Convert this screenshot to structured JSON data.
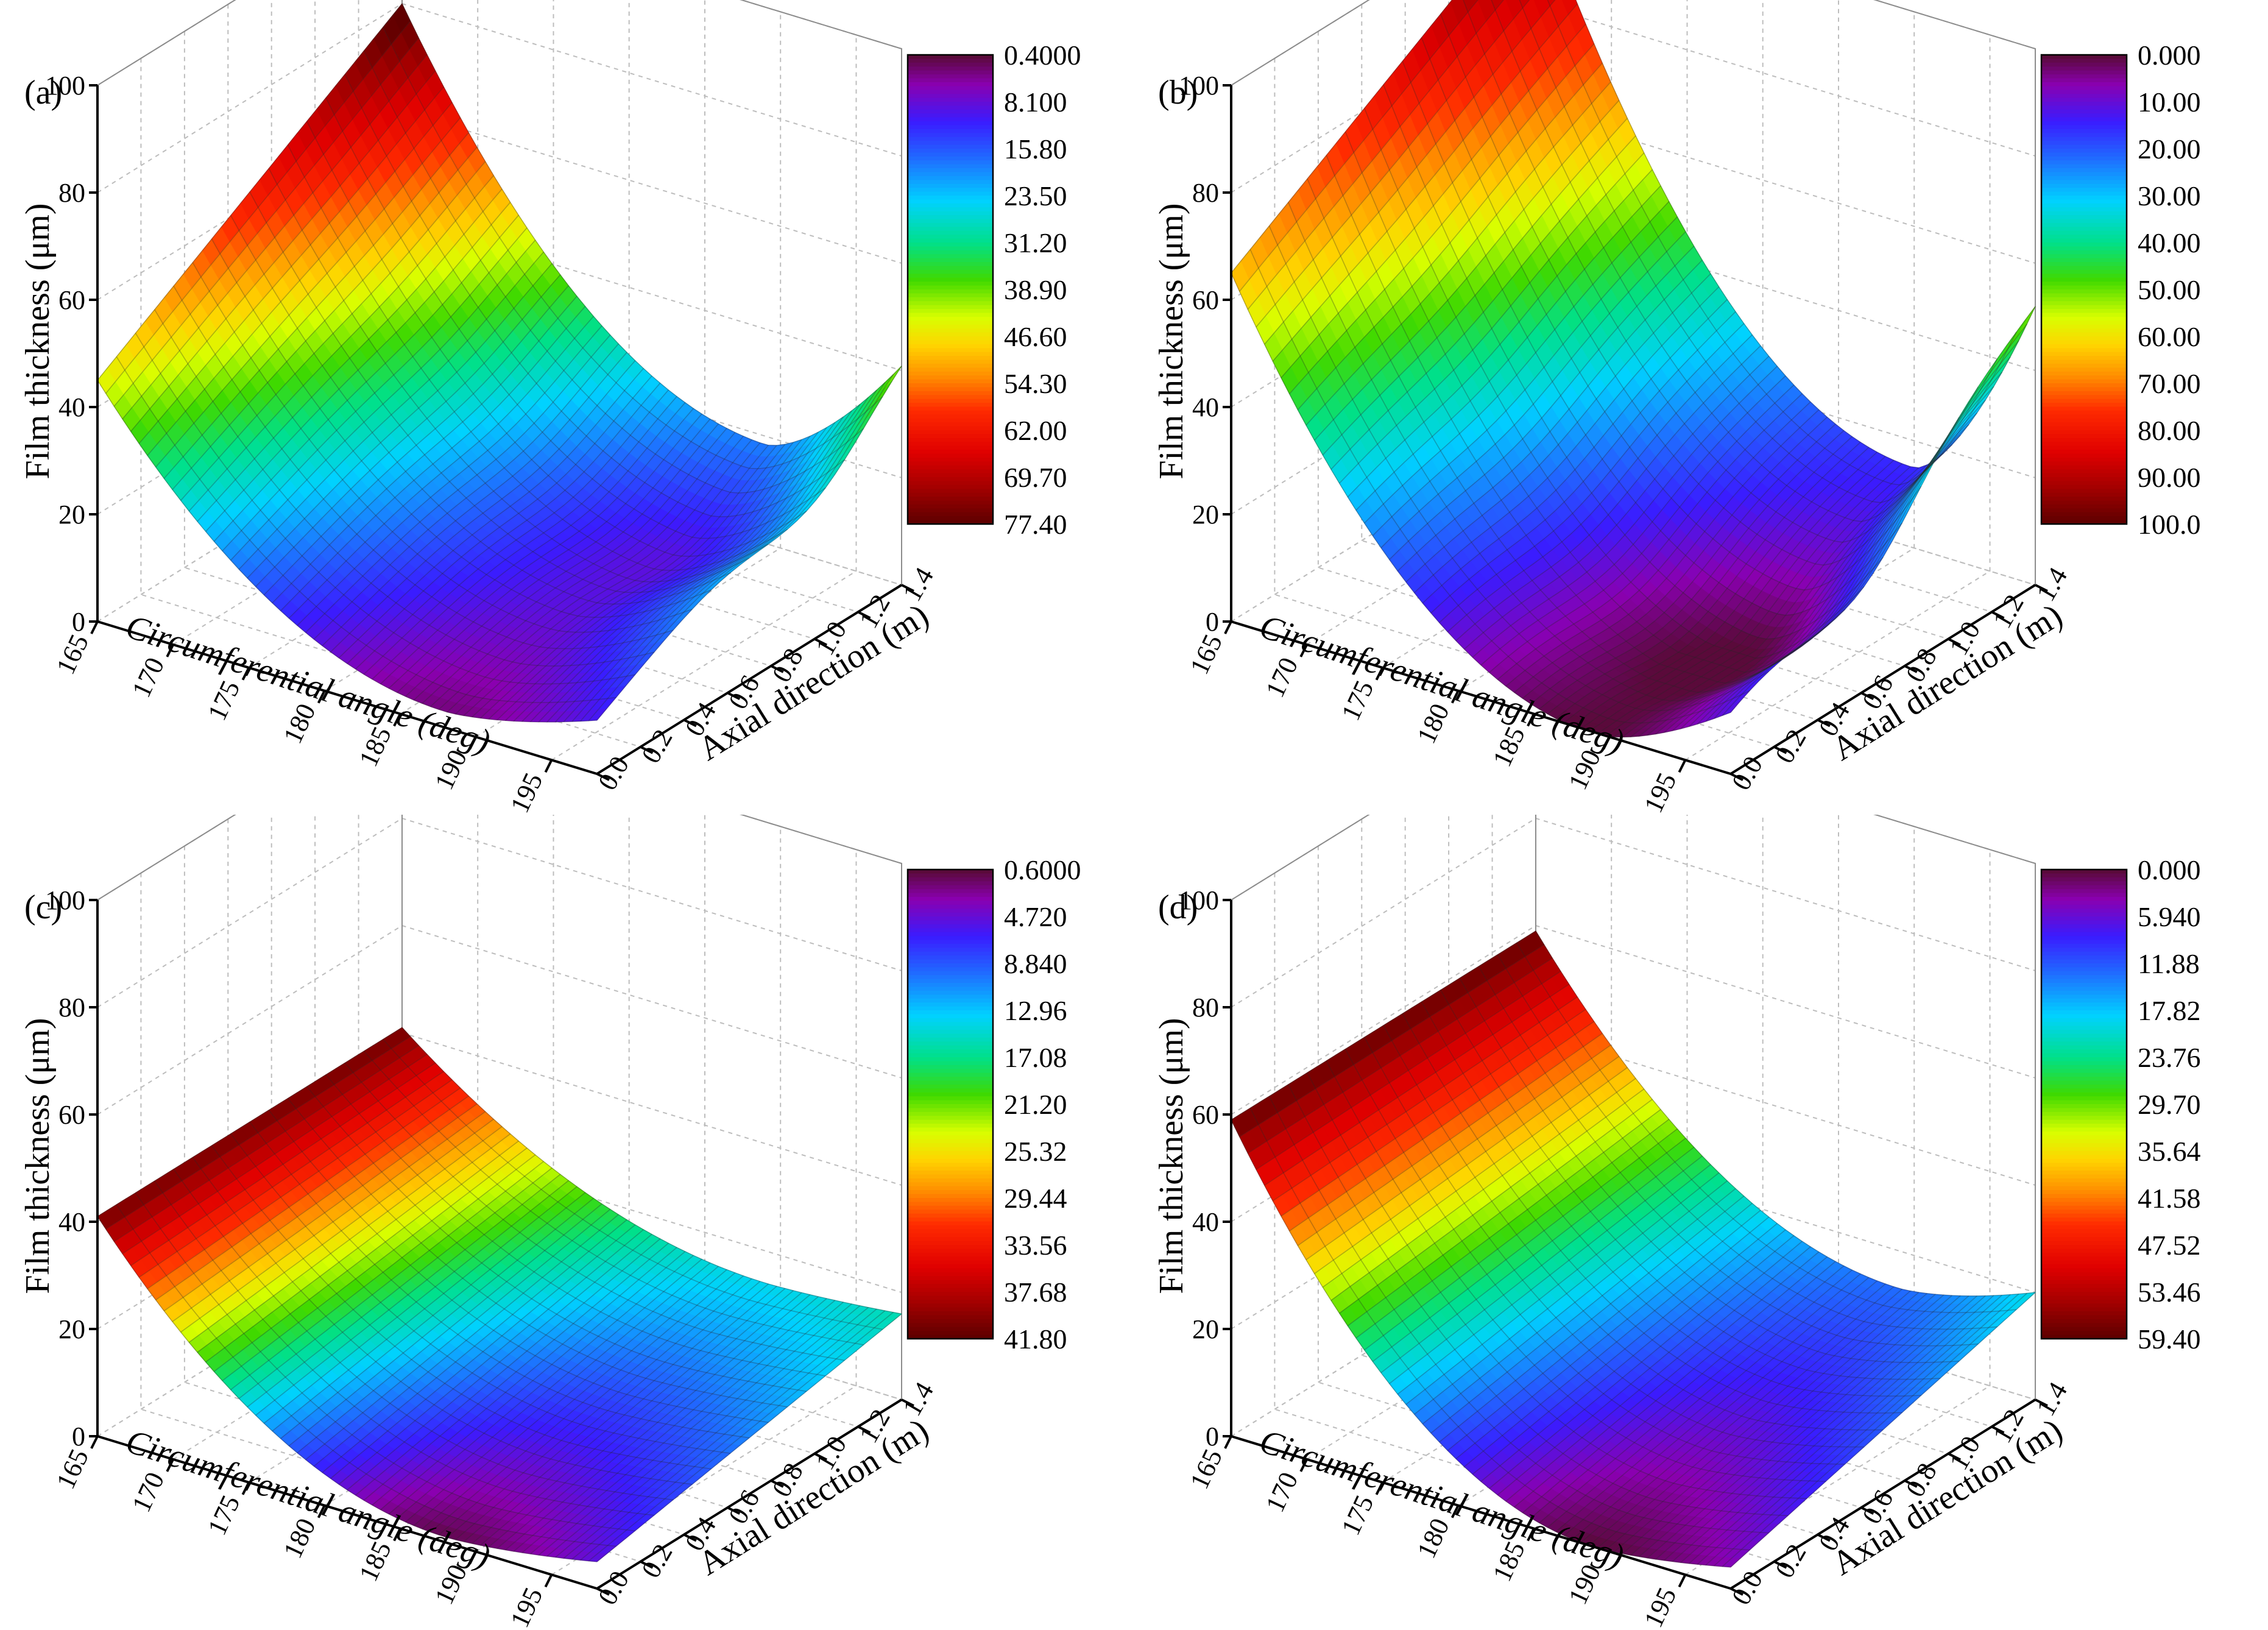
{
  "chart_data": [
    {
      "type": "surface",
      "panel_label": "(a)",
      "zlabel": "Film thickness (μm)",
      "xlabel": "Circumferential angle (deg)",
      "ylabel": "Axial direction (m)",
      "xticks": [
        "165",
        "170",
        "175",
        "180",
        "185",
        "190",
        "195"
      ],
      "yticks": [
        "0.0",
        "0.2",
        "0.4",
        "0.6",
        "0.8",
        "1.0",
        "1.2",
        "1.4"
      ],
      "zticks": [
        "0",
        "20",
        "40",
        "60",
        "80",
        "100"
      ],
      "xlim": [
        165,
        198
      ],
      "ylim": [
        0,
        1.4
      ],
      "zlim": [
        0,
        100
      ],
      "colorbar_labels": [
        "0.4000",
        "8.100",
        "15.80",
        "23.50",
        "31.20",
        "38.90",
        "46.60",
        "54.30",
        "62.00",
        "69.70",
        "77.40"
      ],
      "colorbar_range": [
        0.4,
        77.4
      ],
      "surface": {
        "near_corner": 45,
        "near_min": 3,
        "near_min_angle": 188,
        "near_end": 10,
        "far_corner": 80,
        "far_min": 20,
        "far_min_angle": 189,
        "far_end": 43,
        "axial_min_at": 1.0,
        "axial_dip": 8
      }
    },
    {
      "type": "surface",
      "panel_label": "(b)",
      "zlabel": "Film thickness (μm)",
      "xlabel": "Circumferential angle (deg)",
      "ylabel": "Axial direction (m)",
      "xticks": [
        "165",
        "170",
        "175",
        "180",
        "185",
        "190",
        "195"
      ],
      "yticks": [
        "0.0",
        "0.2",
        "0.4",
        "0.6",
        "0.8",
        "1.0",
        "1.2",
        "1.4"
      ],
      "zticks": [
        "0",
        "20",
        "40",
        "60",
        "80",
        "100"
      ],
      "xlim": [
        165,
        198
      ],
      "ylim": [
        0,
        1.4
      ],
      "zlim": [
        0,
        100
      ],
      "colorbar_labels": [
        "0.000",
        "10.00",
        "20.00",
        "30.00",
        "40.00",
        "50.00",
        "60.00",
        "70.00",
        "80.00",
        "90.00",
        "100.0"
      ],
      "colorbar_range": [
        0,
        100
      ],
      "surface": {
        "near_corner": 65,
        "near_min": 0,
        "near_min_angle": 189,
        "near_end": 12,
        "far_corner": 100,
        "far_min": 15,
        "far_min_angle": 190,
        "far_end": 52,
        "axial_min_at": 0.6,
        "axial_dip": 10
      }
    },
    {
      "type": "surface",
      "panel_label": "(c)",
      "zlabel": "Film thickness (μm)",
      "xlabel": "Circumferential angle (deg)",
      "ylabel": "Axial direction (m)",
      "xticks": [
        "165",
        "170",
        "175",
        "180",
        "185",
        "190",
        "195"
      ],
      "yticks": [
        "0.0",
        "0.2",
        "0.4",
        "0.6",
        "0.8",
        "1.0",
        "1.2",
        "1.4"
      ],
      "zticks": [
        "0",
        "20",
        "40",
        "60",
        "80",
        "100"
      ],
      "xlim": [
        165,
        198
      ],
      "ylim": [
        0,
        1.4
      ],
      "zlim": [
        0,
        100
      ],
      "colorbar_labels": [
        "0.6000",
        "4.720",
        "8.840",
        "12.96",
        "17.08",
        "21.20",
        "25.32",
        "29.44",
        "33.56",
        "37.68",
        "41.80"
      ],
      "colorbar_range": [
        0.6,
        41.8
      ],
      "surface": {
        "near_corner": 41,
        "near_min": 1,
        "near_min_angle": 188,
        "near_end": 5,
        "far_corner": 41,
        "far_min": 14,
        "far_min_angle": 189,
        "far_end": 16,
        "axial_min_at": 1.0,
        "axial_dip": 0
      }
    },
    {
      "type": "surface",
      "panel_label": "(d)",
      "zlabel": "Film thickness (μm)",
      "xlabel": "Circumferential angle (deg)",
      "ylabel": "Axial direction (m)",
      "xticks": [
        "165",
        "170",
        "175",
        "180",
        "185",
        "190",
        "195"
      ],
      "yticks": [
        "0.0",
        "0.2",
        "0.4",
        "0.6",
        "0.8",
        "1.0",
        "1.2",
        "1.4"
      ],
      "zticks": [
        "0",
        "20",
        "40",
        "60",
        "80",
        "100"
      ],
      "xlim": [
        165,
        198
      ],
      "ylim": [
        0,
        1.4
      ],
      "zlim": [
        0,
        100
      ],
      "colorbar_labels": [
        "0.000",
        "5.940",
        "11.88",
        "17.82",
        "23.76",
        "29.70",
        "35.64",
        "41.58",
        "47.52",
        "53.46",
        "59.40"
      ],
      "colorbar_range": [
        0,
        59.4
      ],
      "surface": {
        "near_corner": 59,
        "near_min": 0,
        "near_min_angle": 189,
        "near_end": 4,
        "far_corner": 59,
        "far_min": 13,
        "far_min_angle": 189,
        "far_end": 20,
        "axial_min_at": 1.0,
        "axial_dip": 0
      }
    }
  ]
}
